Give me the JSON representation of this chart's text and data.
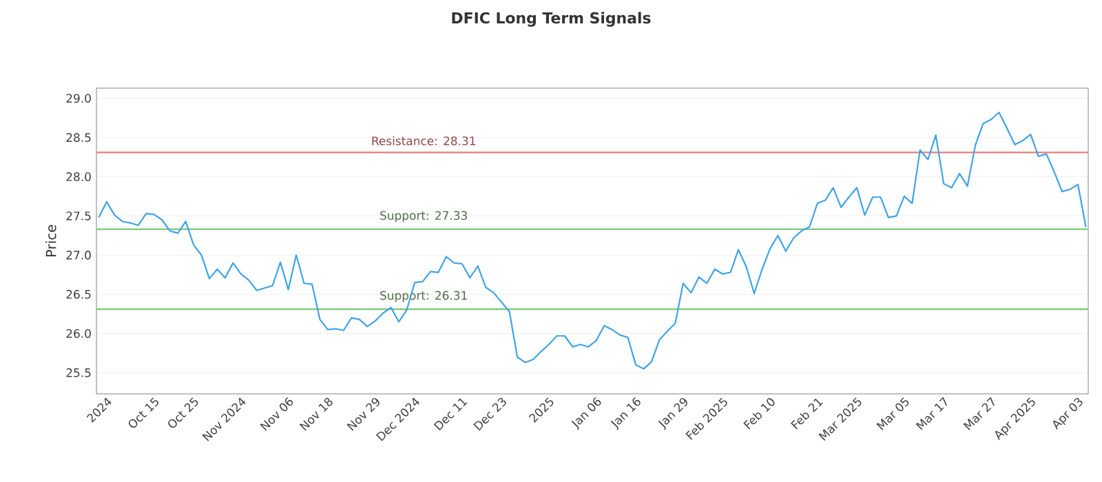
{
  "chart_data": {
    "type": "line",
    "title": "DFIC Long Term Signals",
    "ylabel": "Price",
    "categories": [
      null,
      "2024",
      null,
      null,
      null,
      null,
      null,
      "Oct 15",
      null,
      null,
      null,
      null,
      "Oct 25",
      null,
      null,
      null,
      null,
      null,
      "Nov 2024",
      null,
      null,
      null,
      null,
      null,
      "Nov 06",
      null,
      null,
      null,
      null,
      "Nov 18",
      null,
      null,
      null,
      null,
      null,
      "Nov 29",
      null,
      null,
      null,
      null,
      "Dec 2024",
      null,
      null,
      null,
      null,
      null,
      "Dec 11",
      null,
      null,
      null,
      null,
      "Dec 23",
      null,
      null,
      null,
      null,
      null,
      "2025",
      null,
      null,
      null,
      null,
      null,
      "Jan 06",
      null,
      null,
      null,
      null,
      "Jan 16",
      null,
      null,
      null,
      null,
      null,
      "Jan 29",
      null,
      null,
      null,
      null,
      "Feb 2025",
      null,
      null,
      null,
      null,
      null,
      "Feb 10",
      null,
      null,
      null,
      null,
      null,
      "Feb 21",
      null,
      null,
      null,
      null,
      "Mar 2025",
      null,
      null,
      null,
      null,
      null,
      "Mar 05",
      null,
      null,
      null,
      null,
      "Mar 17",
      null,
      null,
      null,
      null,
      null,
      "Mar 27",
      null,
      null,
      null,
      null,
      "Apr 2025",
      null,
      null,
      null,
      null,
      null,
      "Apr 03",
      null
    ],
    "series": [
      {
        "color": "#3ea3ea",
        "values": [
          27.48,
          27.68,
          27.51,
          27.43,
          27.41,
          27.38,
          27.53,
          27.52,
          27.45,
          27.31,
          27.28,
          27.43,
          27.13,
          27.0,
          26.7,
          26.82,
          26.71,
          26.9,
          26.76,
          26.68,
          26.55,
          26.58,
          26.61,
          26.91,
          26.56,
          27.0,
          26.64,
          26.63,
          26.18,
          26.05,
          26.06,
          26.04,
          26.2,
          26.18,
          26.09,
          26.16,
          26.26,
          26.33,
          26.15,
          26.3,
          26.65,
          26.66,
          26.79,
          26.78,
          26.98,
          26.9,
          26.89,
          26.71,
          26.86,
          26.59,
          26.52,
          26.4,
          26.28,
          25.7,
          25.63,
          25.67,
          25.77,
          25.86,
          25.97,
          25.97,
          25.83,
          25.86,
          25.83,
          25.91,
          26.1,
          26.05,
          25.98,
          25.95,
          25.6,
          25.55,
          25.64,
          25.92,
          26.03,
          26.13,
          26.64,
          26.52,
          26.72,
          26.64,
          26.82,
          26.76,
          26.78,
          27.07,
          26.85,
          26.51,
          26.82,
          27.08,
          27.25,
          27.05,
          27.22,
          27.31,
          27.36,
          27.66,
          27.7,
          27.86,
          27.61,
          27.74,
          27.86,
          27.51,
          27.74,
          27.74,
          27.48,
          27.5,
          27.75,
          27.66,
          28.34,
          28.22,
          28.53,
          27.91,
          27.86,
          28.04,
          27.88,
          28.4,
          28.68,
          28.73,
          28.82,
          28.62,
          28.41,
          28.46,
          28.54,
          28.26,
          28.29,
          28.06,
          27.81,
          27.84,
          27.9,
          27.36
        ]
      }
    ],
    "ylim": [
      25.23,
      29.13
    ],
    "yticks": [
      {
        "value": 25.5,
        "label": "25.5"
      },
      {
        "value": 26.0,
        "label": "26.0"
      },
      {
        "value": 26.5,
        "label": "26.5"
      },
      {
        "value": 27.0,
        "label": "27.0"
      },
      {
        "value": 27.5,
        "label": "27.5"
      },
      {
        "value": 28.0,
        "label": "28.0"
      },
      {
        "value": 28.5,
        "label": "28.5"
      },
      {
        "value": 29.0,
        "label": "29.0"
      }
    ],
    "grid": "y",
    "marker": "none",
    "line_style": "solid",
    "ref_lines": [
      {
        "axis": "y",
        "value": 28.31,
        "label": "Resistance: 28.31",
        "color": "#e57f7f"
      },
      {
        "axis": "y",
        "value": 27.33,
        "label": "Support: 27.33",
        "color": "#7fc97f"
      },
      {
        "axis": "y",
        "value": 26.31,
        "label": "Support: 26.31",
        "color": "#7fc97f"
      }
    ]
  }
}
